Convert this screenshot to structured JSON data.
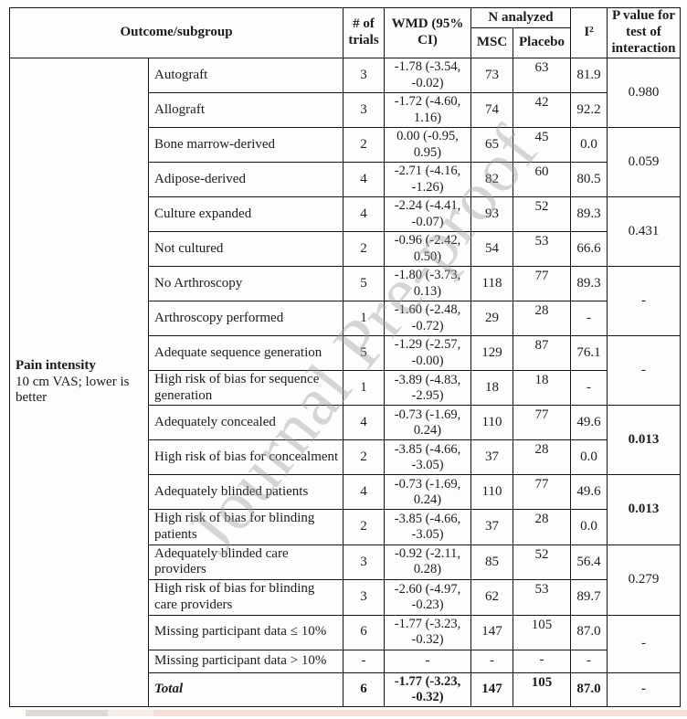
{
  "page": {
    "watermark": "Journal Pre-proof"
  },
  "table": {
    "header": {
      "outcome_subgroup": "Outcome/subgroup",
      "num_trials": "# of trials",
      "wmd": "WMD (95% CI)",
      "n_analyzed": "N analyzed",
      "msc": "MSC",
      "placebo": "Placebo",
      "i_squared": "I²",
      "p_value": "P value for test of interaction"
    },
    "outcome": {
      "title": "Pain intensity",
      "subtitle": "10 cm VAS; lower is better"
    },
    "rows": [
      {
        "subgroup": "Autograft",
        "trials": "3",
        "wmd": "-1.78 (-3.54, -0.02)",
        "msc": "73",
        "placebo": "63",
        "i2": "81.9",
        "p": "0.980",
        "p_span": 2
      },
      {
        "subgroup": "Allograft",
        "trials": "3",
        "wmd": "-1.72 (-4.60, 1.16)",
        "msc": "74",
        "placebo": "42",
        "i2": "92.2"
      },
      {
        "subgroup": "Bone marrow-derived",
        "trials": "2",
        "wmd": "0.00 (-0.95, 0.95)",
        "msc": "65",
        "placebo": "45",
        "i2": "0.0",
        "p": "0.059",
        "p_span": 2
      },
      {
        "subgroup": "Adipose-derived",
        "trials": "4",
        "wmd": "-2.71 (-4.16, -1.26)",
        "msc": "82",
        "placebo": "60",
        "i2": "80.5"
      },
      {
        "subgroup": "Culture expanded",
        "trials": "4",
        "wmd": "-2.24 (-4.41, -0.07)",
        "msc": "93",
        "placebo": "52",
        "i2": "89.3",
        "p": "0.431",
        "p_span": 2
      },
      {
        "subgroup": "Not cultured",
        "trials": "2",
        "wmd": "-0.96 (-2.42, 0.50)",
        "msc": "54",
        "placebo": "53",
        "i2": "66.6"
      },
      {
        "subgroup": "No Arthroscopy",
        "trials": "5",
        "wmd": "-1.80 (-3.73, 0.13)",
        "msc": "118",
        "placebo": "77",
        "i2": "89.3",
        "p": "-",
        "p_span": 2
      },
      {
        "subgroup": "Arthroscopy performed",
        "trials": "1",
        "wmd": "-1.60 (-2.48, -0.72)",
        "msc": "29",
        "placebo": "28",
        "i2": "-"
      },
      {
        "subgroup": "Adequate sequence generation",
        "trials": "5",
        "wmd": "-1.29 (-2.57, -0.00)",
        "msc": "129",
        "placebo": "87",
        "i2": "76.1",
        "p": "-",
        "p_span": 2
      },
      {
        "subgroup": "High risk of bias for sequence generation",
        "trials": "1",
        "wmd": "-3.89 (-4.83, -2.95)",
        "msc": "18",
        "placebo": "18",
        "i2": "-"
      },
      {
        "subgroup": "Adequately concealed",
        "trials": "4",
        "wmd": "-0.73 (-1.69, 0.24)",
        "msc": "110",
        "placebo": "77",
        "i2": "49.6",
        "p": "0.013",
        "p_span": 2,
        "p_bold": true
      },
      {
        "subgroup": "High risk of bias for concealment",
        "trials": "2",
        "wmd": "-3.85 (-4.66, -3.05)",
        "msc": "37",
        "placebo": "28",
        "i2": "0.0"
      },
      {
        "subgroup": "Adequately blinded patients",
        "trials": "4",
        "wmd": "-0.73 (-1.69, 0.24)",
        "msc": "110",
        "placebo": "77",
        "i2": "49.6",
        "p": "0.013",
        "p_span": 2,
        "p_bold": true
      },
      {
        "subgroup": "High risk of bias for blinding patients",
        "trials": "2",
        "wmd": "-3.85 (-4.66, -3.05)",
        "msc": "37",
        "placebo": "28",
        "i2": "0.0"
      },
      {
        "subgroup": "Adequately blinded care providers",
        "trials": "3",
        "wmd": "-0.92 (-2.11, 0.28)",
        "msc": "85",
        "placebo": "52",
        "i2": "56.4",
        "p": "0.279",
        "p_span": 2
      },
      {
        "subgroup": "High risk of bias for blinding care providers",
        "trials": "3",
        "wmd": "-2.60 (-4.97, -0.23)",
        "msc": "62",
        "placebo": "53",
        "i2": "89.7"
      },
      {
        "subgroup": "Missing participant data ≤ 10%",
        "trials": "6",
        "wmd": "-1.77 (-3.23, -0.32)",
        "msc": "147",
        "placebo": "105",
        "i2": "87.0",
        "p": "-",
        "p_span": 2
      },
      {
        "subgroup": "Missing participant data > 10%",
        "trials": "-",
        "wmd": "-",
        "msc": "-",
        "placebo": "-",
        "i2": "-",
        "short": true
      },
      {
        "subgroup": "Total",
        "trials": "6",
        "wmd": "-1.77 (-3.23, -0.32)",
        "msc": "147",
        "placebo": "105",
        "i2": "87.0",
        "p": "-",
        "p_span": 1,
        "total": true
      }
    ]
  }
}
